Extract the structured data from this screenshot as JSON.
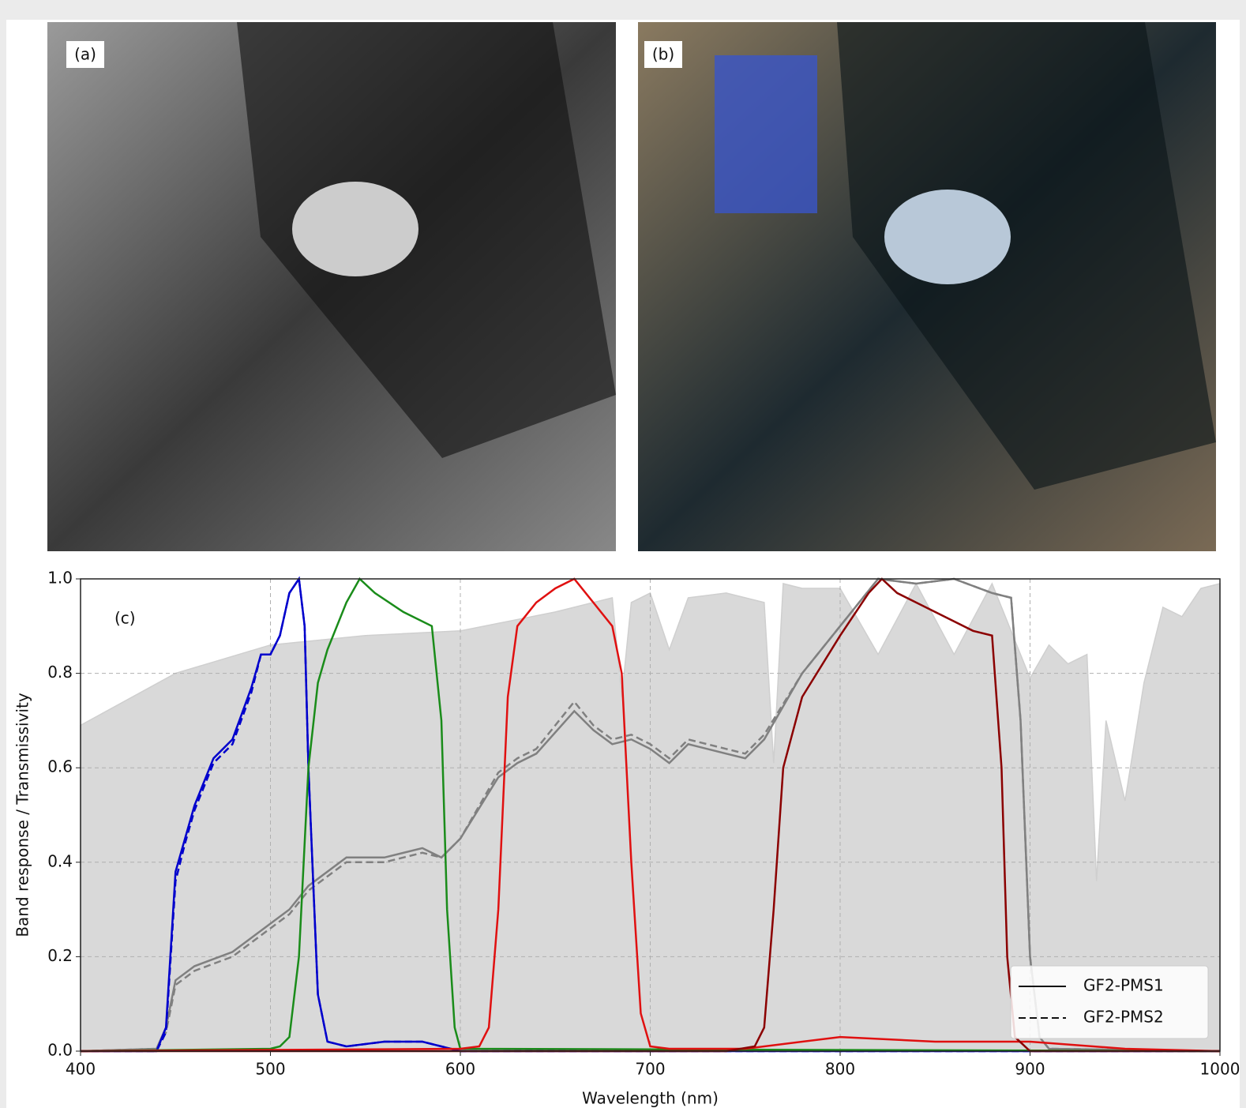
{
  "panels": {
    "a": "(a)",
    "b": "(b)"
  },
  "chart_data": {
    "type": "line",
    "panel_label": "(c)",
    "xlabel": "Wavelength (nm)",
    "ylabel": "Band response / Transmissivity",
    "xlim": [
      400,
      1000
    ],
    "ylim": [
      0,
      1
    ],
    "xticks": [
      400,
      500,
      600,
      700,
      800,
      900,
      1000
    ],
    "yticks": [
      {
        "value": 0,
        "label": "0.0"
      },
      {
        "value": 0.2,
        "label": "0.2"
      },
      {
        "value": 0.4,
        "label": "0.4"
      },
      {
        "value": 0.6,
        "label": "0.6"
      },
      {
        "value": 0.8,
        "label": "0.8"
      },
      {
        "value": 1,
        "label": "1.0"
      }
    ],
    "grid": true,
    "legend_position": "lower right",
    "legend": [
      {
        "label": "GF2-PMS1",
        "linestyle": "solid"
      },
      {
        "label": "GF2-PMS2",
        "linestyle": "dashed"
      }
    ],
    "series": [
      {
        "kind": "area",
        "color": "#d9d9d9",
        "x": [
          400,
          450,
          500,
          550,
          600,
          650,
          680,
          685,
          690,
          700,
          710,
          720,
          740,
          760,
          765,
          770,
          780,
          800,
          820,
          840,
          860,
          880,
          900,
          910,
          920,
          930,
          935,
          940,
          950,
          960,
          970,
          980,
          990,
          1000
        ],
        "values": [
          0.69,
          0.8,
          0.86,
          0.88,
          0.89,
          0.93,
          0.96,
          0.75,
          0.95,
          0.97,
          0.85,
          0.96,
          0.97,
          0.95,
          0.61,
          0.99,
          0.98,
          0.98,
          0.84,
          0.99,
          0.84,
          0.99,
          0.79,
          0.86,
          0.82,
          0.84,
          0.36,
          0.7,
          0.53,
          0.78,
          0.94,
          0.92,
          0.98,
          0.99
        ]
      },
      {
        "kind": "line",
        "color": "#808080",
        "linestyle": "solid",
        "x": [
          400,
          440,
          445,
          450,
          460,
          480,
          500,
          510,
          520,
          540,
          560,
          580,
          590,
          600,
          620,
          630,
          640,
          660,
          670,
          680,
          690,
          700,
          710,
          720,
          740,
          750,
          760,
          780,
          800,
          820,
          840,
          860,
          880,
          890,
          895,
          900,
          905,
          910,
          1000
        ],
        "values": [
          0,
          0.005,
          0.05,
          0.15,
          0.18,
          0.21,
          0.27,
          0.3,
          0.35,
          0.41,
          0.41,
          0.43,
          0.41,
          0.45,
          0.58,
          0.61,
          0.63,
          0.72,
          0.68,
          0.65,
          0.66,
          0.64,
          0.61,
          0.65,
          0.63,
          0.62,
          0.66,
          0.8,
          0.9,
          1.0,
          0.99,
          1.0,
          0.97,
          0.96,
          0.7,
          0.2,
          0.03,
          0.005,
          0
        ]
      },
      {
        "kind": "line",
        "color": "#808080",
        "linestyle": "dashed",
        "x": [
          400,
          440,
          445,
          450,
          460,
          480,
          500,
          510,
          520,
          540,
          560,
          580,
          590,
          600,
          620,
          630,
          640,
          660,
          670,
          680,
          690,
          700,
          710,
          720,
          740,
          750,
          760,
          780,
          800,
          820,
          840,
          860,
          880,
          890,
          895,
          900,
          905,
          910,
          1000
        ],
        "values": [
          0,
          0.005,
          0.04,
          0.14,
          0.17,
          0.2,
          0.26,
          0.29,
          0.34,
          0.4,
          0.4,
          0.42,
          0.41,
          0.45,
          0.59,
          0.62,
          0.64,
          0.74,
          0.69,
          0.66,
          0.67,
          0.65,
          0.62,
          0.66,
          0.64,
          0.63,
          0.67,
          0.8,
          0.9,
          1.0,
          0.99,
          1.0,
          0.97,
          0.96,
          0.7,
          0.2,
          0.03,
          0.005,
          0
        ]
      },
      {
        "kind": "line",
        "color": "#0000cc",
        "linestyle": "solid",
        "x": [
          400,
          440,
          445,
          450,
          455,
          460,
          470,
          480,
          490,
          495,
          500,
          505,
          510,
          515,
          518,
          520,
          525,
          530,
          540,
          560,
          580,
          600,
          1000
        ],
        "values": [
          0,
          0,
          0.05,
          0.38,
          0.45,
          0.52,
          0.62,
          0.66,
          0.77,
          0.84,
          0.84,
          0.88,
          0.97,
          1.0,
          0.9,
          0.6,
          0.12,
          0.02,
          0.01,
          0.02,
          0.02,
          0,
          0
        ]
      },
      {
        "kind": "line",
        "color": "#0000cc",
        "linestyle": "dashed",
        "x": [
          400,
          440,
          445,
          450,
          455,
          460,
          470,
          480,
          490,
          495,
          500,
          505,
          510,
          515,
          518,
          520,
          525,
          530,
          540,
          560,
          580,
          600,
          1000
        ],
        "values": [
          0,
          0,
          0.04,
          0.36,
          0.44,
          0.51,
          0.61,
          0.65,
          0.76,
          0.84,
          0.84,
          0.88,
          0.97,
          1.0,
          0.9,
          0.6,
          0.12,
          0.02,
          0.01,
          0.02,
          0.02,
          0,
          0
        ]
      },
      {
        "kind": "line",
        "color": "#1a8c1a",
        "linestyle": "solid",
        "x": [
          400,
          500,
          505,
          510,
          515,
          520,
          525,
          530,
          540,
          547,
          555,
          570,
          585,
          590,
          593,
          597,
          600,
          1000
        ],
        "values": [
          0,
          0.005,
          0.01,
          0.03,
          0.2,
          0.6,
          0.78,
          0.85,
          0.95,
          1.0,
          0.97,
          0.93,
          0.9,
          0.7,
          0.3,
          0.05,
          0.005,
          0
        ]
      },
      {
        "kind": "line",
        "color": "#e01010",
        "linestyle": "solid",
        "x": [
          400,
          600,
          610,
          615,
          620,
          625,
          630,
          640,
          650,
          660,
          670,
          680,
          685,
          690,
          695,
          700,
          710,
          750,
          800,
          850,
          900,
          950,
          1000
        ],
        "values": [
          0,
          0.005,
          0.01,
          0.05,
          0.3,
          0.75,
          0.9,
          0.95,
          0.98,
          1.0,
          0.95,
          0.9,
          0.8,
          0.4,
          0.08,
          0.01,
          0.005,
          0.005,
          0.03,
          0.02,
          0.02,
          0.005,
          0
        ]
      },
      {
        "kind": "line",
        "color": "#8b0000",
        "linestyle": "solid",
        "x": [
          400,
          740,
          755,
          760,
          765,
          770,
          780,
          800,
          815,
          822,
          830,
          850,
          870,
          880,
          885,
          888,
          892,
          900,
          1000
        ],
        "values": [
          0,
          0,
          0.01,
          0.05,
          0.3,
          0.6,
          0.75,
          0.88,
          0.97,
          1.0,
          0.97,
          0.93,
          0.89,
          0.88,
          0.6,
          0.2,
          0.03,
          0,
          0
        ]
      }
    ]
  }
}
